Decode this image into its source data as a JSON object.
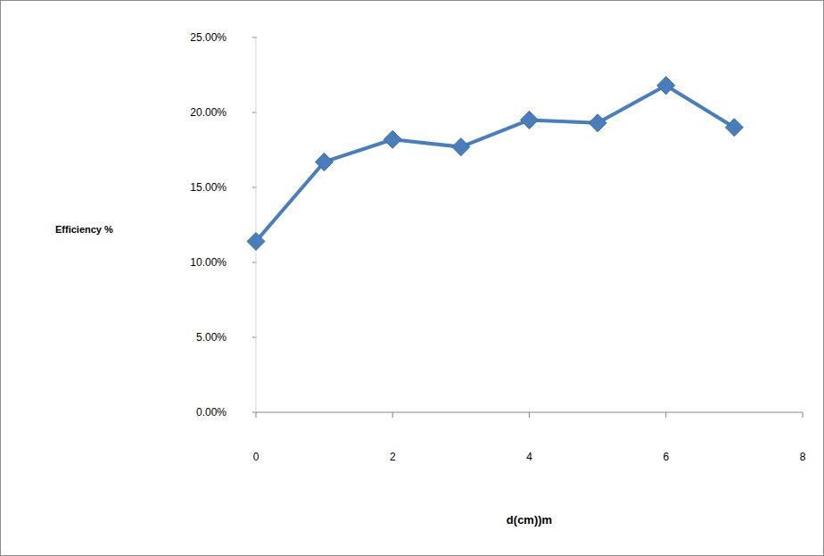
{
  "chart_data": {
    "type": "line",
    "x_label": "d(cm))m",
    "y_label": "Efficiency %",
    "x": [
      0,
      1,
      2,
      3,
      4,
      5,
      6,
      7
    ],
    "values": [
      11.4,
      16.7,
      18.2,
      17.7,
      19.5,
      19.3,
      21.8,
      19.0
    ],
    "color": "#4a7ebb",
    "marker": "diamond",
    "xlim": [
      0,
      8
    ],
    "xticks": [
      0,
      2,
      4,
      6,
      8
    ],
    "ylim": [
      0,
      25
    ],
    "yticks": [
      {
        "value": 0,
        "label": "0.00%"
      },
      {
        "value": 5,
        "label": "5.00%"
      },
      {
        "value": 10,
        "label": "10.00%"
      },
      {
        "value": 15,
        "label": "15.00%"
      },
      {
        "value": 20,
        "label": "20.00%"
      },
      {
        "value": 25,
        "label": "25.00%"
      }
    ],
    "grid": false
  }
}
